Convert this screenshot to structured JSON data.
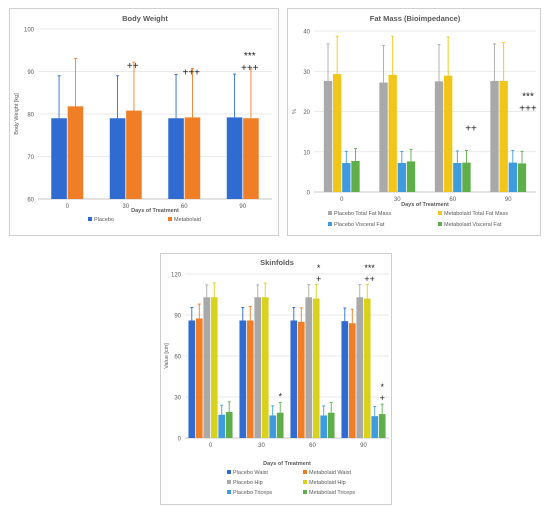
{
  "colors": {
    "placebo_blue": "#2f6bd0",
    "metabolaid_orange": "#f07e26",
    "placebo_gray": "#a9a9a9",
    "metabolaid_yellow": "#f2c618",
    "placebo_lightblue": "#3f9be0",
    "metabolaid_green": "#5fae4a",
    "axis": "#bfbfbf",
    "grid": "#e3e3e3",
    "title": "#595959"
  },
  "chart_data": [
    {
      "type": "bar",
      "title": "Body Weight",
      "xlabel": "Days of Treatment",
      "ylabel": "Body Weight [kg]",
      "ylim": [
        60,
        100
      ],
      "yticks": [
        "60",
        "70",
        "80",
        "90",
        "100"
      ],
      "yticks_values": [
        60,
        70,
        80,
        90,
        100
      ],
      "categories": [
        "0",
        "30",
        "60",
        "90"
      ],
      "grid": true,
      "legend_position": "bottom",
      "series": [
        {
          "name": "Placebo",
          "color": "#2f6bd0",
          "values": [
            79,
            79,
            79,
            79.2
          ],
          "err": [
            10,
            10,
            10.3,
            10.2
          ]
        },
        {
          "name": "Metabolaid",
          "color": "#f07e26",
          "values": [
            81.8,
            80.8,
            79.2,
            79
          ],
          "err": [
            11.3,
            11.4,
            11.5,
            11.6
          ]
        }
      ],
      "annotations": [
        {
          "category": 1,
          "lines": [
            "++"
          ]
        },
        {
          "category": 2,
          "lines": [
            "+++"
          ]
        },
        {
          "category": 3,
          "lines": [
            "***",
            "+++"
          ]
        }
      ]
    },
    {
      "type": "bar",
      "title": "Fat Mass (Bioimpedance)",
      "xlabel": "Days of Treatment",
      "ylabel": "%",
      "ylim": [
        0,
        40
      ],
      "yticks": [
        "0",
        "10",
        "20",
        "30",
        "40"
      ],
      "yticks_values": [
        0,
        10,
        20,
        30,
        40
      ],
      "categories": [
        "0",
        "30",
        "60",
        "90"
      ],
      "grid": true,
      "legend_position": "bottom",
      "series": [
        {
          "name": "Placebo Total Fat Mass",
          "color": "#a9a9a9",
          "values": [
            27.6,
            27.2,
            27.5,
            27.6
          ],
          "err": [
            9.2,
            9.2,
            9.1,
            9.2
          ]
        },
        {
          "name": "Metabolaid Total Fat Mass",
          "color": "#f2c618",
          "values": [
            29.3,
            29.1,
            28.9,
            27.6
          ],
          "err": [
            9.4,
            9.6,
            9.6,
            9.5
          ]
        },
        {
          "name": "Placebo Visceral Fat",
          "color": "#3f9be0",
          "values": [
            7.2,
            7.2,
            7.2,
            7.3
          ],
          "err": [
            2.9,
            2.9,
            3,
            3
          ]
        },
        {
          "name": "Metabolaid Visceral Fat",
          "color": "#5fae4a",
          "values": [
            7.7,
            7.6,
            7.3,
            7.1
          ],
          "err": [
            3.1,
            3,
            3,
            3
          ]
        }
      ],
      "annotations": [
        {
          "category": 2,
          "lines": [
            "++"
          ]
        },
        {
          "category": 3,
          "lines": [
            "***",
            "+++"
          ]
        }
      ]
    },
    {
      "type": "bar",
      "title": "Skinfolds",
      "xlabel": "Days of Treatment",
      "ylabel": "Value [cm]",
      "ylim": [
        0,
        120
      ],
      "yticks": [
        "0",
        "30",
        "60",
        "90",
        "120"
      ],
      "yticks_values": [
        0,
        30,
        60,
        90,
        120
      ],
      "categories": [
        "0",
        "30",
        "60",
        "90"
      ],
      "grid": true,
      "legend_position": "bottom",
      "series": [
        {
          "name": "Placebo Waist",
          "color": "#2f6bd0",
          "values": [
            86,
            86,
            86,
            85.5
          ],
          "err": [
            9.5,
            9.5,
            9.5,
            9.6
          ]
        },
        {
          "name": "Metabolaid Waist",
          "color": "#f07e26",
          "values": [
            87.5,
            86,
            85,
            84
          ],
          "err": [
            10.5,
            10.3,
            10.3,
            10.2
          ]
        },
        {
          "name": "Placebo Hip",
          "color": "#a9a9a9",
          "values": [
            103,
            103,
            103,
            103
          ],
          "err": [
            9,
            9,
            9.2,
            9.2
          ]
        },
        {
          "name": "Metabolaid Hip",
          "color": "#d9d21c",
          "values": [
            103,
            103,
            102,
            102
          ],
          "err": [
            10.5,
            10.4,
            10.4,
            10.4
          ]
        },
        {
          "name": "Placebo Triceps",
          "color": "#3f9be0",
          "values": [
            17,
            16.5,
            16.5,
            16
          ],
          "err": [
            7,
            7,
            7,
            7
          ]
        },
        {
          "name": "Metabolaid Triceps",
          "color": "#5fae4a",
          "values": [
            19,
            18.5,
            18.5,
            17.5
          ],
          "err": [
            7.5,
            7.5,
            7.5,
            7.3
          ]
        }
      ],
      "annotations": [
        {
          "category": 1,
          "lines": [
            "*"
          ],
          "anchor": "triceps"
        },
        {
          "category": 2,
          "lines": [
            "*",
            "+"
          ]
        },
        {
          "category": 3,
          "lines": [
            "***",
            "++"
          ]
        },
        {
          "category": 3,
          "lines": [
            "*",
            "+"
          ],
          "anchor": "triceps"
        }
      ]
    }
  ]
}
